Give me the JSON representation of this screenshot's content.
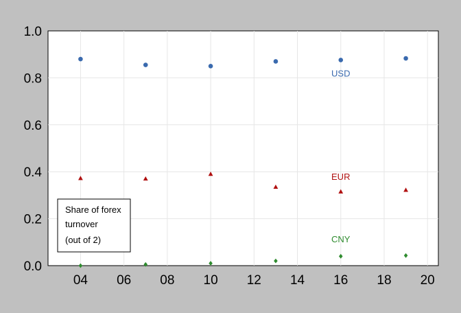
{
  "chart_data": {
    "type": "scatter",
    "title": "",
    "xlabel": "",
    "ylabel": "",
    "xlim": [
      2002.5,
      2020.5
    ],
    "ylim": [
      0,
      1.0
    ],
    "grid": true,
    "x_ticks": [
      {
        "value": 2004,
        "label": "04"
      },
      {
        "value": 2006,
        "label": "06"
      },
      {
        "value": 2008,
        "label": "08"
      },
      {
        "value": 2010,
        "label": "10"
      },
      {
        "value": 2012,
        "label": "12"
      },
      {
        "value": 2014,
        "label": "14"
      },
      {
        "value": 2016,
        "label": "16"
      },
      {
        "value": 2018,
        "label": "18"
      },
      {
        "value": 2020,
        "label": "20"
      }
    ],
    "y_ticks": [
      {
        "value": 0.0,
        "label": "0.0"
      },
      {
        "value": 0.2,
        "label": "0.2"
      },
      {
        "value": 0.4,
        "label": "0.4"
      },
      {
        "value": 0.6,
        "label": "0.6"
      },
      {
        "value": 0.8,
        "label": "0.8"
      },
      {
        "value": 1.0,
        "label": "1.0"
      }
    ],
    "x": [
      2004,
      2007,
      2010,
      2013,
      2016,
      2019
    ],
    "series": [
      {
        "name": "USD",
        "color": "#3a6aae",
        "marker": "circle",
        "values": [
          0.88,
          0.855,
          0.85,
          0.87,
          0.876,
          0.883
        ],
        "label_at": {
          "x": 2016,
          "y": 0.805
        }
      },
      {
        "name": "EUR",
        "color": "#b01010",
        "marker": "triangle",
        "values": [
          0.372,
          0.37,
          0.39,
          0.335,
          0.315,
          0.322
        ],
        "label_at": {
          "x": 2016,
          "y": 0.366
        }
      },
      {
        "name": "CNY",
        "color": "#2e8b2e",
        "marker": "diamond",
        "values": [
          0.0,
          0.005,
          0.01,
          0.02,
          0.04,
          0.043
        ],
        "label_at": {
          "x": 2016,
          "y": 0.1
        }
      }
    ],
    "annotation": {
      "lines": [
        "Share of forex",
        "turnover",
        "(out of 2)"
      ]
    }
  }
}
